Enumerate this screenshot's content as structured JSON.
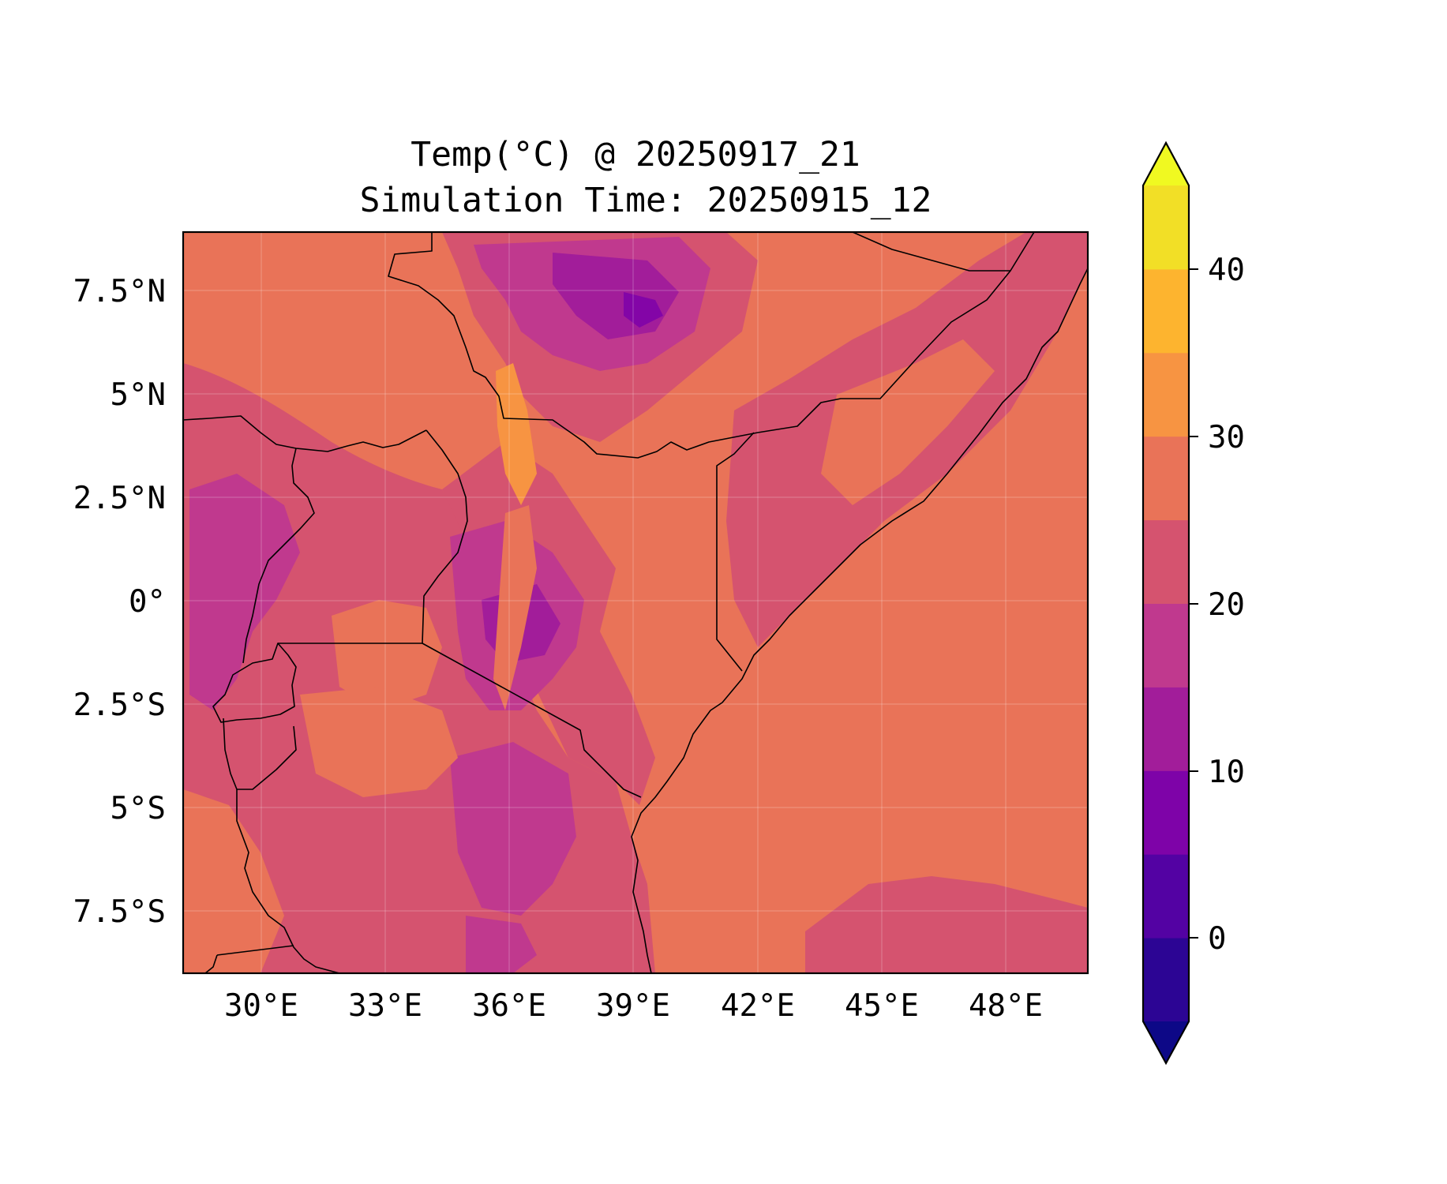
{
  "title": {
    "line1": "Temp(°C) @ 20250917_21",
    "line2": "Simulation Time: 20250915_12"
  },
  "map": {
    "lon_ticks": [
      "30°E",
      "33°E",
      "36°E",
      "39°E",
      "42°E",
      "45°E",
      "48°E"
    ],
    "lat_ticks": [
      "7.5°N",
      "5°N",
      "2.5°N",
      "0°",
      "2.5°S",
      "5°S",
      "7.5°S"
    ],
    "colors": {
      "c20_25": "#d5536f",
      "c25_30": "#e97358",
      "c30_35": "#f79442",
      "c15_20": "#c0398e",
      "c10_15": "#a21d9a",
      "c5_10": "#8305a7"
    }
  },
  "colorbar": {
    "tick_labels": [
      "0",
      "10",
      "20",
      "30",
      "40"
    ],
    "extend": "both",
    "colors": [
      "#0d0887",
      "#2c0594",
      "#5302a3",
      "#7e03a8",
      "#a21d9a",
      "#c0398e",
      "#d5536f",
      "#e97358",
      "#f79442",
      "#fdb42f",
      "#f2df26",
      "#f0f921"
    ]
  }
}
